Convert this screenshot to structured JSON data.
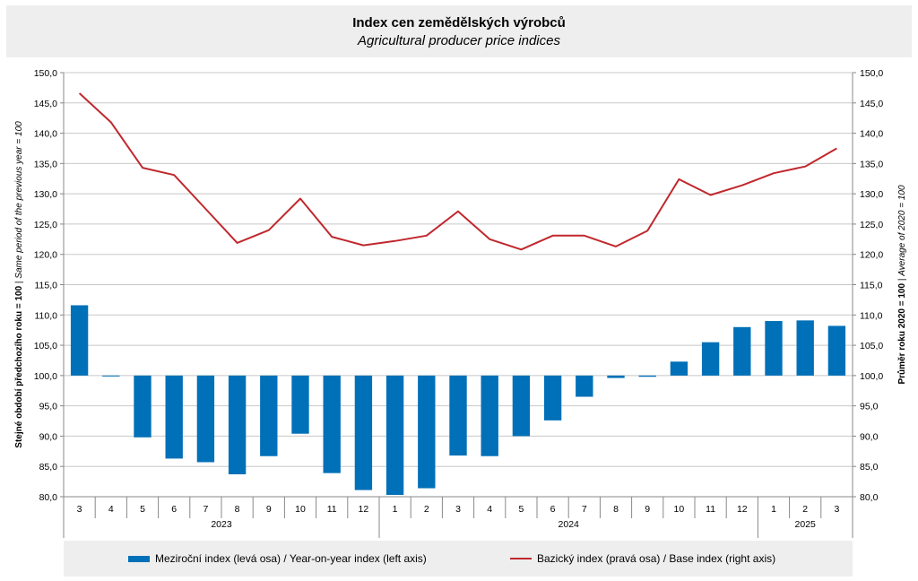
{
  "title": "Index cen zemědělských výrobců",
  "subtitle": "Agricultural producer price indices",
  "chart_data": {
    "type": "bar+line",
    "categories": [
      "3",
      "4",
      "5",
      "6",
      "7",
      "8",
      "9",
      "10",
      "11",
      "12",
      "1",
      "2",
      "3",
      "4",
      "5",
      "6",
      "7",
      "8",
      "9",
      "10",
      "11",
      "12",
      "1",
      "2",
      "3"
    ],
    "year_groups": [
      {
        "label": "2023",
        "start": 0,
        "end": 9
      },
      {
        "label": "2024",
        "start": 10,
        "end": 21
      },
      {
        "label": "2025",
        "start": 22,
        "end": 24
      }
    ],
    "series": [
      {
        "name": "Meziroční index (levá osa) / Year-on-year index (left axis)",
        "type": "bar",
        "axis": "left",
        "color": "#0070b8",
        "values": [
          111.6,
          100.0,
          89.8,
          86.3,
          85.7,
          83.7,
          86.7,
          90.4,
          83.9,
          81.1,
          80.3,
          81.4,
          86.8,
          86.7,
          90.0,
          92.6,
          96.5,
          99.6,
          99.8,
          102.3,
          105.5,
          108.0,
          109.0,
          109.1,
          108.2
        ]
      },
      {
        "name": "Bazický index (pravá osa) / Base index (right axis)",
        "type": "line",
        "axis": "right",
        "color": "#c0282d",
        "values": [
          146.6,
          141.8,
          134.3,
          133.1,
          127.5,
          121.9,
          124.0,
          129.2,
          122.9,
          121.5,
          122.2,
          123.1,
          127.1,
          122.5,
          120.8,
          123.1,
          123.1,
          121.3,
          123.9,
          132.4,
          129.8,
          131.4,
          133.4,
          134.5,
          137.5
        ]
      }
    ],
    "yleft": {
      "label_main": "Stejné období předchozího roku = 100",
      "label_sep": " | ",
      "label_en": "Same period of  the previous year = 100",
      "ylim": [
        80,
        150
      ],
      "ticks": [
        "80,0",
        "85,0",
        "90,0",
        "95,0",
        "100,0",
        "105,0",
        "110,0",
        "115,0",
        "120,0",
        "125,0",
        "130,0",
        "135,0",
        "140,0",
        "145,0",
        "150,0"
      ]
    },
    "yright": {
      "label_main": "Průměr roku 2020 = 100",
      "label_sep": " | ",
      "label_en": "Average of 2020 = 100",
      "ylim": [
        80,
        150
      ],
      "ticks": [
        "80,0",
        "85,0",
        "90,0",
        "95,0",
        "100,0",
        "105,0",
        "110,0",
        "115,0",
        "120,0",
        "125,0",
        "130,0",
        "135,0",
        "140,0",
        "145,0",
        "150,0"
      ]
    },
    "baseline": 100,
    "grid": true,
    "legend_position": "bottom"
  },
  "legend": {
    "bar_label": "Meziroční index (levá osa) / Year-on-year index (left axis)",
    "line_label": "Bazický index (pravá osa) / Base index (right axis)"
  }
}
